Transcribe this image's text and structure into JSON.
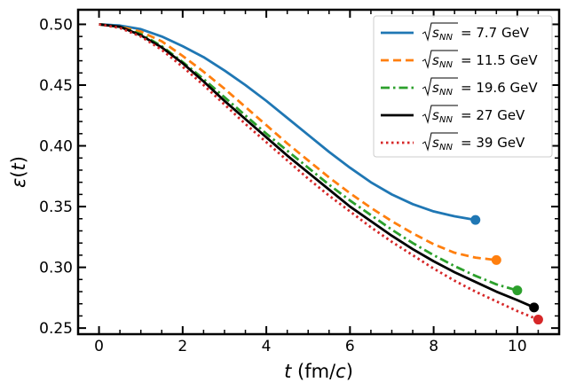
{
  "chart_data": {
    "type": "line",
    "title": "",
    "xlabel": "t (fm/c)",
    "ylabel": "ε(t)",
    "xlim": [
      -0.5,
      11.0
    ],
    "ylim": [
      0.245,
      0.512
    ],
    "xticks": [
      0,
      2,
      4,
      6,
      8,
      10
    ],
    "xtick_labels": [
      "0",
      "2",
      "4",
      "6",
      "8",
      "10"
    ],
    "yticks": [
      0.25,
      0.3,
      0.35,
      0.4,
      0.45,
      0.5
    ],
    "ytick_labels": [
      "0.25",
      "0.30",
      "0.35",
      "0.40",
      "0.45",
      "0.50"
    ],
    "legend_position": "top-right",
    "grid": false,
    "series": [
      {
        "name": "√sNN = 7.7 GeV",
        "legend_label": "= 7.7 GeV",
        "color": "#1f77b4",
        "dash": "solid",
        "x": [
          0,
          0.5,
          1.0,
          1.5,
          2.0,
          2.5,
          3.0,
          3.5,
          4.0,
          4.5,
          5.0,
          5.5,
          6.0,
          6.5,
          7.0,
          7.5,
          8.0,
          8.5,
          9.0
        ],
        "y": [
          0.5,
          0.499,
          0.496,
          0.49,
          0.482,
          0.473,
          0.462,
          0.45,
          0.437,
          0.423,
          0.409,
          0.395,
          0.382,
          0.37,
          0.36,
          0.352,
          0.346,
          0.342,
          0.339
        ],
        "end_point": [
          9.0,
          0.339
        ]
      },
      {
        "name": "√sNN = 11.5 GeV",
        "legend_label": "= 11.5 GeV",
        "color": "#ff7f0e",
        "dash": "dashed",
        "x": [
          0,
          0.5,
          1.0,
          1.5,
          2.0,
          2.5,
          3.0,
          3.5,
          4.0,
          4.5,
          5.0,
          5.5,
          6.0,
          6.5,
          7.0,
          7.5,
          8.0,
          8.5,
          9.0,
          9.5
        ],
        "y": [
          0.5,
          0.498,
          0.494,
          0.486,
          0.474,
          0.461,
          0.447,
          0.432,
          0.417,
          0.402,
          0.388,
          0.374,
          0.361,
          0.349,
          0.338,
          0.328,
          0.319,
          0.312,
          0.308,
          0.306
        ],
        "end_point": [
          9.5,
          0.306
        ]
      },
      {
        "name": "√sNN = 19.6 GeV",
        "legend_label": "= 19.6 GeV",
        "color": "#2ca02c",
        "dash": "dashdot",
        "x": [
          0,
          0.5,
          1.0,
          1.5,
          2.0,
          2.5,
          3.0,
          3.5,
          4.0,
          4.5,
          5.0,
          5.5,
          6.0,
          6.5,
          7.0,
          7.5,
          8.0,
          8.5,
          9.0,
          9.5,
          10.0
        ],
        "y": [
          0.5,
          0.498,
          0.492,
          0.482,
          0.469,
          0.455,
          0.44,
          0.425,
          0.41,
          0.396,
          0.382,
          0.368,
          0.355,
          0.343,
          0.331,
          0.32,
          0.31,
          0.301,
          0.293,
          0.286,
          0.281
        ],
        "end_point": [
          10.0,
          0.281
        ]
      },
      {
        "name": "√sNN = 27 GeV",
        "legend_label": "= 27 GeV",
        "color": "#000000",
        "dash": "solid",
        "x": [
          0,
          0.5,
          1.0,
          1.5,
          2.0,
          2.5,
          3.0,
          3.5,
          4.0,
          4.5,
          5.0,
          5.5,
          6.0,
          6.5,
          7.0,
          7.5,
          8.0,
          8.5,
          9.0,
          9.5,
          10.0,
          10.4
        ],
        "y": [
          0.5,
          0.498,
          0.491,
          0.481,
          0.468,
          0.453,
          0.437,
          0.422,
          0.407,
          0.392,
          0.378,
          0.364,
          0.35,
          0.338,
          0.326,
          0.315,
          0.305,
          0.296,
          0.288,
          0.28,
          0.273,
          0.267
        ],
        "end_point": [
          10.4,
          0.267
        ]
      },
      {
        "name": "√sNN = 39 GeV",
        "legend_label": "= 39 GeV",
        "color": "#d62728",
        "dash": "dotted",
        "x": [
          0,
          0.5,
          1.0,
          1.5,
          2.0,
          2.5,
          3.0,
          3.5,
          4.0,
          4.5,
          5.0,
          5.5,
          6.0,
          6.5,
          7.0,
          7.5,
          8.0,
          8.5,
          9.0,
          9.5,
          10.0,
          10.5
        ],
        "y": [
          0.5,
          0.497,
          0.49,
          0.479,
          0.465,
          0.45,
          0.434,
          0.418,
          0.403,
          0.388,
          0.373,
          0.359,
          0.346,
          0.333,
          0.321,
          0.31,
          0.299,
          0.289,
          0.28,
          0.272,
          0.264,
          0.257
        ],
        "end_point": [
          10.5,
          0.257
        ]
      }
    ]
  }
}
